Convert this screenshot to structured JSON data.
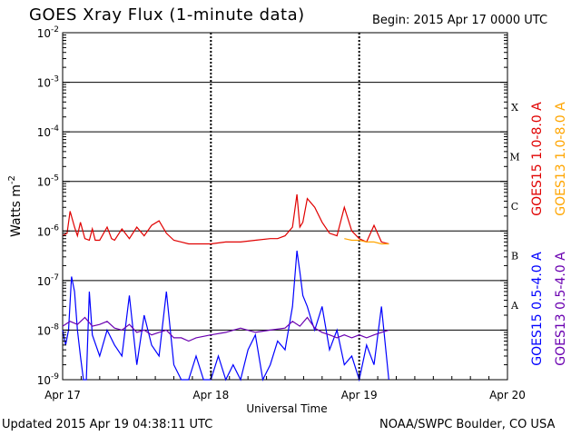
{
  "header": {
    "title": "GOES Xray Flux (1-minute data)",
    "begin": "Begin:  2015 Apr 17 0000 UTC"
  },
  "footer": {
    "updated": "Updated 2015 Apr 19 04:38:11 UTC",
    "credit": "NOAA/SWPC Boulder, CO USA"
  },
  "colors": {
    "goes15_long": "#e00000",
    "goes13_long": "#ffa500",
    "goes15_short": "#0000ff",
    "goes13_short": "#6a00b0"
  },
  "chart_data": {
    "type": "line",
    "title": "GOES Xray Flux (1-minute data)",
    "xlabel": "Universal Time",
    "ylabel": "Watts m-2",
    "ylabel_main": "Watts m",
    "ylabel_sup": "-2",
    "y_scale": "log",
    "ylim": [
      1e-09,
      0.01
    ],
    "xlim_days": [
      0,
      3
    ],
    "x_ticks": [
      "Apr 17",
      "Apr 18",
      "Apr 19",
      "Apr 20"
    ],
    "y_ticks": [
      {
        "base": "10",
        "exp": "-9",
        "value": 1e-09
      },
      {
        "base": "10",
        "exp": "-8",
        "value": 1e-08
      },
      {
        "base": "10",
        "exp": "-7",
        "value": 1e-07
      },
      {
        "base": "10",
        "exp": "-6",
        "value": 1e-06
      },
      {
        "base": "10",
        "exp": "-5",
        "value": 1e-05
      },
      {
        "base": "10",
        "exp": "-4",
        "value": 0.0001
      },
      {
        "base": "10",
        "exp": "-3",
        "value": 0.001
      },
      {
        "base": "10",
        "exp": "-2",
        "value": 0.01
      }
    ],
    "flare_classes": [
      {
        "label": "A",
        "value": 3.16e-08
      },
      {
        "label": "B",
        "value": 3.16e-07
      },
      {
        "label": "C",
        "value": 3.16e-06
      },
      {
        "label": "M",
        "value": 3.16e-05
      },
      {
        "label": "X",
        "value": 0.000316
      }
    ],
    "grid": true,
    "legend_position": "right",
    "series": [
      {
        "name": "GOES15 1.0-8.0 A",
        "color": "#e00000",
        "x": [
          0,
          0.03,
          0.05,
          0.08,
          0.1,
          0.12,
          0.15,
          0.18,
          0.2,
          0.22,
          0.25,
          0.3,
          0.33,
          0.35,
          0.4,
          0.45,
          0.5,
          0.55,
          0.6,
          0.65,
          0.7,
          0.75,
          0.8,
          0.85,
          0.9,
          1.0,
          1.1,
          1.2,
          1.3,
          1.4,
          1.45,
          1.5,
          1.55,
          1.58,
          1.6,
          1.62,
          1.65,
          1.7,
          1.75,
          1.8,
          1.85,
          1.9,
          1.95,
          2.0,
          2.05,
          2.1,
          2.15,
          2.2
        ],
        "y": [
          8e-07,
          9e-07,
          2.5e-06,
          1.2e-06,
          8e-07,
          1.5e-06,
          7e-07,
          6.5e-07,
          1.1e-06,
          6.5e-07,
          6.5e-07,
          1.2e-06,
          7e-07,
          6.5e-07,
          1.1e-06,
          7e-07,
          1.2e-06,
          8e-07,
          1.3e-06,
          1.6e-06,
          9e-07,
          6.5e-07,
          6e-07,
          5.5e-07,
          5.5e-07,
          5.5e-07,
          6e-07,
          6e-07,
          6.5e-07,
          7e-07,
          7e-07,
          8e-07,
          1.2e-06,
          5.5e-06,
          1.2e-06,
          1.5e-06,
          4.5e-06,
          3e-06,
          1.5e-06,
          9e-07,
          8e-07,
          3e-06,
          1e-06,
          7e-07,
          6e-07,
          1.3e-06,
          6e-07,
          5.5e-07
        ]
      },
      {
        "name": "GOES13 1.0-8.0 A",
        "color": "#ffa500",
        "x": [
          1.9,
          1.95,
          2.0,
          2.05,
          2.1,
          2.15,
          2.2
        ],
        "y": [
          7e-07,
          6.5e-07,
          6.5e-07,
          6e-07,
          6e-07,
          5.5e-07,
          5.5e-07
        ]
      },
      {
        "name": "GOES15 0.5-4.0 A",
        "color": "#0000ff",
        "x": [
          0,
          0.02,
          0.04,
          0.06,
          0.08,
          0.1,
          0.12,
          0.14,
          0.16,
          0.18,
          0.2,
          0.25,
          0.3,
          0.35,
          0.4,
          0.45,
          0.5,
          0.55,
          0.6,
          0.65,
          0.7,
          0.75,
          0.8,
          0.85,
          0.9,
          0.95,
          1.0,
          1.05,
          1.1,
          1.15,
          1.2,
          1.25,
          1.3,
          1.35,
          1.4,
          1.45,
          1.5,
          1.55,
          1.58,
          1.6,
          1.62,
          1.65,
          1.68,
          1.7,
          1.75,
          1.8,
          1.85,
          1.9,
          1.95,
          2.0,
          2.05,
          2.1,
          2.15,
          2.2
        ],
        "y": [
          1e-08,
          5e-09,
          1e-08,
          1.2e-07,
          6e-08,
          1e-08,
          3e-09,
          1e-09,
          1e-09,
          6e-08,
          8e-09,
          3e-09,
          1e-08,
          5e-09,
          3e-09,
          5e-08,
          2e-09,
          2e-08,
          5e-09,
          3e-09,
          6e-08,
          2e-09,
          1e-09,
          1e-09,
          3e-09,
          1e-09,
          1e-09,
          3e-09,
          1e-09,
          2e-09,
          1e-09,
          4e-09,
          8e-09,
          1e-09,
          2e-09,
          6e-09,
          4e-09,
          3e-08,
          4e-07,
          1.5e-07,
          5e-08,
          3e-08,
          1.5e-08,
          1e-08,
          3e-08,
          4e-09,
          1e-08,
          2e-09,
          3e-09,
          1e-09,
          5e-09,
          2e-09,
          3e-08,
          1e-09
        ]
      },
      {
        "name": "GOES13 0.5-4.0 A",
        "color": "#6a00b0",
        "x": [
          0,
          0.05,
          0.1,
          0.15,
          0.2,
          0.25,
          0.3,
          0.35,
          0.4,
          0.45,
          0.5,
          0.55,
          0.6,
          0.65,
          0.7,
          0.75,
          0.8,
          0.85,
          0.9,
          1.0,
          1.1,
          1.2,
          1.3,
          1.4,
          1.5,
          1.55,
          1.6,
          1.65,
          1.7,
          1.75,
          1.8,
          1.85,
          1.9,
          1.95,
          2.0,
          2.05,
          2.1,
          2.15,
          2.2
        ],
        "y": [
          1.2e-08,
          1.5e-08,
          1.3e-08,
          1.8e-08,
          1.2e-08,
          1.3e-08,
          1.5e-08,
          1.1e-08,
          1e-08,
          1.3e-08,
          9e-09,
          1e-08,
          8e-09,
          9e-09,
          1e-08,
          7e-09,
          7e-09,
          6e-09,
          7e-09,
          8e-09,
          9e-09,
          1.1e-08,
          9e-09,
          1e-08,
          1.1e-08,
          1.5e-08,
          1.2e-08,
          1.8e-08,
          1.1e-08,
          9e-09,
          8e-09,
          7e-09,
          8e-09,
          7e-09,
          8e-09,
          7e-09,
          8e-09,
          9e-09,
          1e-08
        ]
      }
    ]
  }
}
